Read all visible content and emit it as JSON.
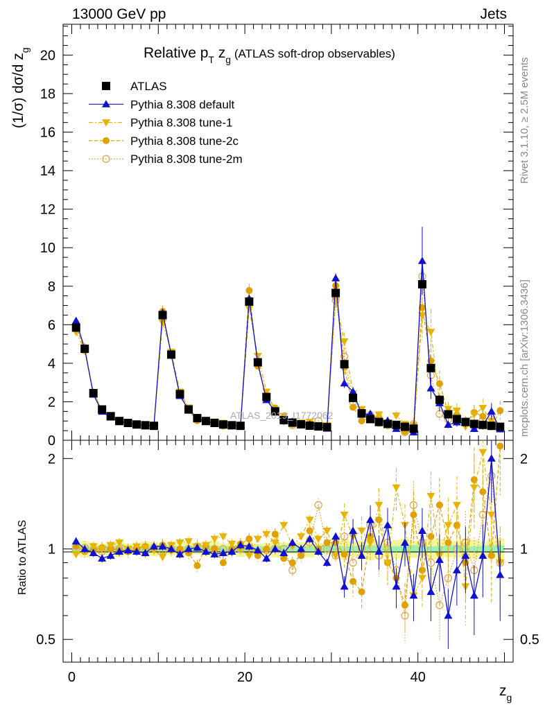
{
  "header": {
    "left": "13000 GeV pp",
    "right": "Jets"
  },
  "side": {
    "rivet": "Rivet 3.1.10, ≥ 2.5M events",
    "mcplots": "mcplots.cern.ch [arXiv:1306.3436]"
  },
  "chart_data": {
    "type": "scatter",
    "title_main": "Relative p",
    "title_sub_T": "T",
    "title_z": " z",
    "title_sub_g": "g",
    "title_rest": " (ATLAS soft-drop observables)",
    "watermark": "ATLAS_2019_I1772062",
    "xlabel_main": "z",
    "xlabel_sub": "g",
    "ylabel_main": "(1/σ) dσ/d z",
    "ylabel_sub": "g",
    "ratio_ylabel": "Ratio to ATLAS",
    "xlim": [
      -1,
      51
    ],
    "ylim": [
      0,
      21.6
    ],
    "ratio_ylim": [
      0.42,
      2.3
    ],
    "x_ticks": [
      "0",
      "20",
      "40"
    ],
    "y_ticks": [
      "0",
      "2",
      "4",
      "6",
      "8",
      "10",
      "12",
      "14",
      "16",
      "18",
      "20"
    ],
    "ratio_ticks": [
      "0.5",
      "1",
      "2"
    ],
    "legend_position": "top-left",
    "x": [
      0.5,
      1.5,
      2.5,
      3.5,
      4.5,
      5.5,
      6.5,
      7.5,
      8.5,
      9.5,
      10.5,
      11.5,
      12.5,
      13.5,
      14.5,
      15.5,
      16.5,
      17.5,
      18.5,
      19.5,
      20.5,
      21.5,
      22.5,
      23.5,
      24.5,
      25.5,
      26.5,
      27.5,
      28.5,
      29.5,
      30.5,
      31.5,
      32.5,
      33.5,
      34.5,
      35.5,
      36.5,
      37.5,
      38.5,
      39.5,
      40.5,
      41.5,
      42.5,
      43.5,
      44.5,
      45.5,
      46.5,
      47.5,
      48.5,
      49.5
    ],
    "data_series": {
      "name": "ATLAS",
      "values": [
        5.85,
        4.75,
        2.45,
        1.6,
        1.25,
        1.0,
        0.9,
        0.82,
        0.78,
        0.75,
        6.5,
        4.45,
        2.4,
        1.6,
        1.15,
        1.0,
        0.9,
        0.82,
        0.78,
        0.75,
        7.2,
        4.05,
        2.25,
        1.5,
        1.05,
        0.92,
        0.83,
        0.76,
        0.72,
        0.68,
        7.65,
        3.95,
        2.2,
        1.4,
        1.1,
        0.95,
        0.85,
        0.8,
        0.7,
        0.6,
        8.1,
        3.75,
        2.1,
        1.35,
        1.1,
        0.95,
        0.85,
        0.8,
        0.75,
        0.7
      ]
    },
    "series": [
      {
        "name": "Pythia 8.308 default",
        "ratio": [
          1.06,
          1.0,
          0.97,
          0.93,
          0.95,
          0.98,
          0.99,
          0.98,
          0.97,
          1.02,
          1.02,
          1.0,
          0.96,
          1.0,
          1.01,
          0.98,
          0.96,
          0.97,
          0.98,
          1.03,
          1.02,
          0.99,
          0.93,
          1.0,
          0.97,
          1.05,
          1.0,
          1.08,
          0.98,
          0.9,
          1.1,
          0.75,
          1.15,
          0.95,
          1.25,
          0.98,
          1.2,
          0.75,
          1.05,
          0.7,
          1.15,
          0.72,
          0.92,
          0.6,
          0.85,
          0.95,
          0.7,
          0.95,
          2.0,
          0.82
        ]
      },
      {
        "name": "Pythia 8.308 tune-1",
        "ratio": [
          0.96,
          0.98,
          1.02,
          1.0,
          1.03,
          1.05,
          1.0,
          1.02,
          1.01,
          0.99,
          0.94,
          1.03,
          1.05,
          1.06,
          1.02,
          1.03,
          1.08,
          1.1,
          1.04,
          1.0,
          0.95,
          1.08,
          1.12,
          1.05,
          1.2,
          1.02,
          1.1,
          1.25,
          1.08,
          1.15,
          0.95,
          1.3,
          1.1,
          1.15,
          1.05,
          1.4,
          0.9,
          1.6,
          1.2,
          0.7,
          0.8,
          1.5,
          0.95,
          1.2,
          1.4,
          0.75,
          1.6,
          2.1,
          1.3,
          0.9
        ]
      },
      {
        "name": "Pythia 8.308 tune-2c",
        "ratio": [
          1.02,
          0.98,
          0.99,
          1.01,
          1.0,
          0.99,
          0.98,
          1.0,
          1.02,
          1.0,
          1.03,
          0.99,
          1.0,
          0.97,
          0.88,
          1.02,
          1.0,
          0.9,
          1.0,
          1.04,
          1.08,
          0.95,
          1.0,
          1.12,
          0.93,
          0.9,
          0.95,
          1.15,
          1.0,
          1.05,
          1.05,
          0.96,
          0.78,
          0.72,
          1.1,
          1.25,
          0.9,
          0.8,
          0.65,
          1.3,
          0.85,
          1.1,
          1.4,
          1.05,
          1.2,
          0.9,
          1.7,
          1.55,
          0.95,
          2.2
        ]
      },
      {
        "name": "Pythia 8.308 tune-2m",
        "ratio": [
          1.0,
          1.01,
          0.99,
          0.98,
          1.0,
          1.0,
          0.99,
          1.0,
          0.98,
          1.01,
          0.99,
          1.0,
          0.98,
          1.0,
          1.02,
          0.99,
          1.0,
          1.0,
          0.98,
          1.0,
          1.01,
          0.98,
          0.99,
          1.0,
          1.0,
          0.85,
          0.98,
          1.05,
          1.4,
          1.0,
          0.95,
          1.1,
          0.9,
          1.0,
          1.2,
          0.95,
          1.05,
          0.85,
          0.6,
          1.4,
          1.05,
          0.9,
          0.65,
          0.8,
          1.0,
          1.05,
          0.85,
          1.3,
          1.75,
          0.9
        ]
      }
    ]
  }
}
